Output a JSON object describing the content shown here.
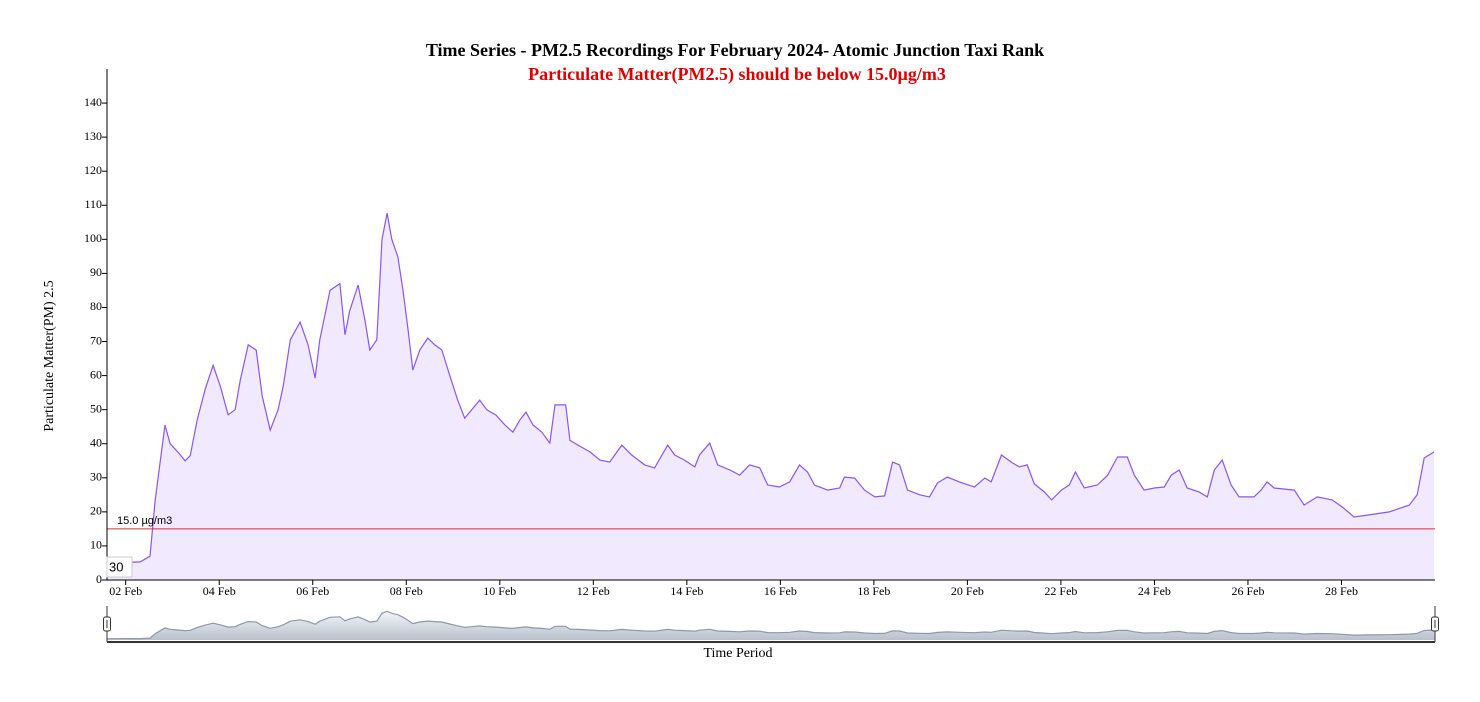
{
  "chart_data": {
    "type": "area",
    "title": "Time Series - PM2.5 Recordings For February 2024- Atomic Junction Taxi Rank",
    "subtitle": "Particulate Matter(PM2.5) should be below 15.0µg/m3",
    "x_label": "Time Period",
    "y_label": "Particulate Matter(PM) 2.5",
    "cursor_label": "30",
    "threshold": 15,
    "threshold_label": "15.0 µg/m3",
    "threshold_color": "#e8283c",
    "color": "#8a55f0",
    "fill_color": "#f1e9fd",
    "navigator_color": "#8d98ad",
    "grid": false,
    "xlim": [
      1.6,
      30
    ],
    "ylim": [
      0,
      150
    ],
    "yticks": [
      0,
      10,
      20,
      30,
      40,
      50,
      60,
      70,
      80,
      90,
      100,
      110,
      120,
      130,
      140
    ],
    "xticks": [
      {
        "value": 2,
        "label": "02 Feb"
      },
      {
        "value": 4,
        "label": "04 Feb"
      },
      {
        "value": 6,
        "label": "06 Feb"
      },
      {
        "value": 8,
        "label": "08 Feb"
      },
      {
        "value": 10,
        "label": "10 Feb"
      },
      {
        "value": 12,
        "label": "12 Feb"
      },
      {
        "value": 14,
        "label": "14 Feb"
      },
      {
        "value": 16,
        "label": "16 Feb"
      },
      {
        "value": 18,
        "label": "18 Feb"
      },
      {
        "value": 20,
        "label": "20 Feb"
      },
      {
        "value": 22,
        "label": "22 Feb"
      },
      {
        "value": 24,
        "label": "24 Feb"
      },
      {
        "value": 26,
        "label": "26 Feb"
      },
      {
        "value": 28,
        "label": "28 Feb"
      }
    ],
    "x": [
      1.6,
      2.31,
      2.52,
      2.63,
      2.74,
      2.84,
      2.95,
      3.12,
      3.27,
      3.38,
      3.53,
      3.7,
      3.87,
      4.02,
      4.19,
      4.34,
      4.45,
      4.62,
      4.79,
      4.92,
      5.09,
      5.26,
      5.37,
      5.52,
      5.73,
      5.9,
      6.05,
      6.15,
      6.37,
      6.58,
      6.69,
      6.79,
      6.97,
      7.12,
      7.22,
      7.37,
      7.48,
      7.59,
      7.69,
      7.82,
      7.93,
      8.04,
      8.14,
      8.29,
      8.46,
      8.61,
      8.76,
      8.93,
      9.1,
      9.25,
      9.4,
      9.57,
      9.72,
      9.92,
      10.11,
      10.28,
      10.43,
      10.56,
      10.71,
      10.9,
      11.07,
      11.18,
      11.41,
      11.5,
      11.67,
      11.93,
      12.14,
      12.35,
      12.61,
      12.82,
      13.1,
      13.31,
      13.59,
      13.74,
      13.95,
      14.17,
      14.27,
      14.49,
      14.66,
      14.92,
      15.13,
      15.34,
      15.56,
      15.73,
      15.98,
      16.2,
      16.41,
      16.58,
      16.73,
      17.01,
      17.27,
      17.37,
      17.59,
      17.8,
      18.02,
      18.23,
      18.4,
      18.55,
      18.72,
      18.98,
      19.19,
      19.36,
      19.57,
      19.83,
      20.15,
      20.37,
      20.51,
      20.73,
      20.94,
      21.11,
      21.28,
      21.43,
      21.65,
      21.8,
      22.01,
      22.18,
      22.31,
      22.5,
      22.78,
      23.0,
      23.21,
      23.42,
      23.57,
      23.78,
      24.0,
      24.21,
      24.36,
      24.53,
      24.7,
      24.96,
      25.13,
      25.28,
      25.45,
      25.64,
      25.81,
      26.13,
      26.28,
      26.41,
      26.56,
      26.99,
      27.2,
      27.48,
      27.8,
      28.02,
      28.27,
      28.59,
      29.02,
      29.45,
      29.62,
      29.77,
      29.98
    ],
    "values": [
      5,
      5.3,
      7,
      23.5,
      35,
      45.5,
      40,
      37.5,
      35,
      36.5,
      47,
      56,
      63,
      57,
      48.5,
      50,
      58.7,
      69,
      67.5,
      54,
      44,
      50,
      57,
      70.5,
      75.7,
      69,
      59.3,
      70.5,
      85,
      87,
      72,
      79,
      86.6,
      76,
      67.5,
      70.5,
      100,
      107.7,
      100,
      94.8,
      85,
      73.4,
      61.6,
      67.5,
      71,
      69,
      67.5,
      60,
      52.8,
      47.5,
      50,
      52.8,
      50,
      48.4,
      45.5,
      43.4,
      47,
      49.3,
      45.5,
      43.4,
      40.2,
      51.4,
      51.4,
      41,
      39.6,
      37.6,
      35.2,
      34.6,
      39.6,
      36.7,
      33.8,
      32.9,
      39.6,
      36.7,
      35.2,
      33.2,
      36.7,
      40.2,
      33.8,
      32.3,
      30.8,
      33.8,
      32.9,
      27.9,
      27.3,
      28.8,
      33.8,
      31.7,
      27.9,
      26.4,
      27,
      30.2,
      29.9,
      26.4,
      24.4,
      24.7,
      34.6,
      33.8,
      26.4,
      25,
      24.4,
      28.5,
      30.2,
      28.8,
      27.3,
      29.9,
      28.8,
      36.7,
      34.6,
      33.2,
      33.8,
      28.2,
      25.8,
      23.5,
      26.4,
      27.9,
      31.7,
      27,
      27.9,
      30.8,
      36.1,
      36.1,
      30.8,
      26.4,
      27,
      27.3,
      30.8,
      32.3,
      27,
      25.8,
      24.4,
      32.3,
      35.2,
      27.9,
      24.4,
      24.4,
      26.4,
      28.8,
      27,
      26.4,
      22,
      24.4,
      23.5,
      21.4,
      18.5,
      19.1,
      20,
      22,
      25,
      35.8,
      37.6
    ]
  }
}
